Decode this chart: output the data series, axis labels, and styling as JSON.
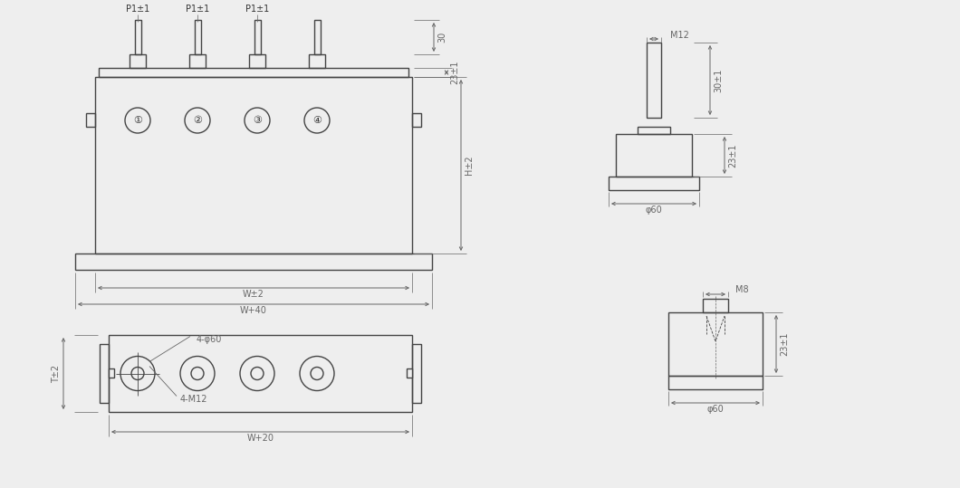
{
  "bg_color": "#eeeeee",
  "line_color": "#444444",
  "dim_color": "#666666",
  "text_color": "#333333",
  "line_width": 1.0,
  "thin_line": 0.6,
  "fig_width": 10.6,
  "fig_height": 5.39,
  "annotations": {
    "p1_labels": [
      "P1±1",
      "P1±1",
      "P1±1"
    ],
    "terminal_nums": [
      "①",
      "②",
      "③",
      "④"
    ],
    "dim_30": "30",
    "dim_23_1": "23±1",
    "dim_H_2": "H±2",
    "dim_W_2": "W±2",
    "dim_W_40": "W+40",
    "dim_T_2": "T±2",
    "dim_W_20": "W+20",
    "dim_4_phi60": "4-φ60",
    "dim_4_M12": "4-M12",
    "dim_M12": "M12",
    "dim_30_1": "30±1",
    "dim_23_1_tr": "23±1",
    "dim_phi60_tr": "φ60",
    "dim_M8": "M8",
    "dim_23_1_br": "23±1",
    "dim_phi60_br": "φ60"
  }
}
